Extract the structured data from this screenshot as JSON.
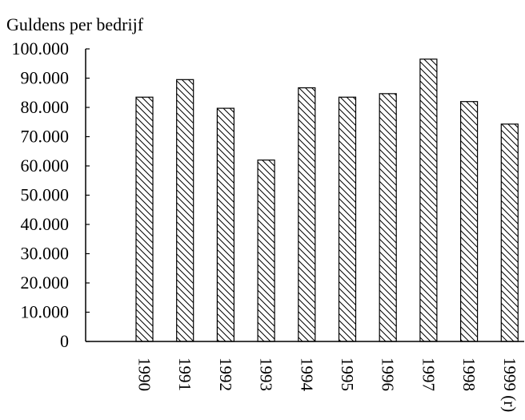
{
  "chart_data": {
    "type": "bar",
    "ylabel": "Guldens per bedrijf",
    "xlabel": "",
    "title": "",
    "categories": [
      "1990",
      "1991",
      "1992",
      "1993",
      "1994",
      "1995",
      "1996",
      "1997",
      "1998",
      "1999 (r)"
    ],
    "values": [
      83500,
      89500,
      79700,
      62000,
      86700,
      83500,
      84700,
      96500,
      82000,
      74300
    ],
    "ylim": [
      0,
      100000
    ],
    "yticks": [
      "0",
      "10.000",
      "20.000",
      "30.000",
      "40.000",
      "50.000",
      "60.000",
      "70.000",
      "80.000",
      "90.000",
      "100.000"
    ],
    "bar_fill": "diagonal-hatch",
    "bar_stroke": "#000000",
    "grid": false,
    "legend": "none"
  }
}
